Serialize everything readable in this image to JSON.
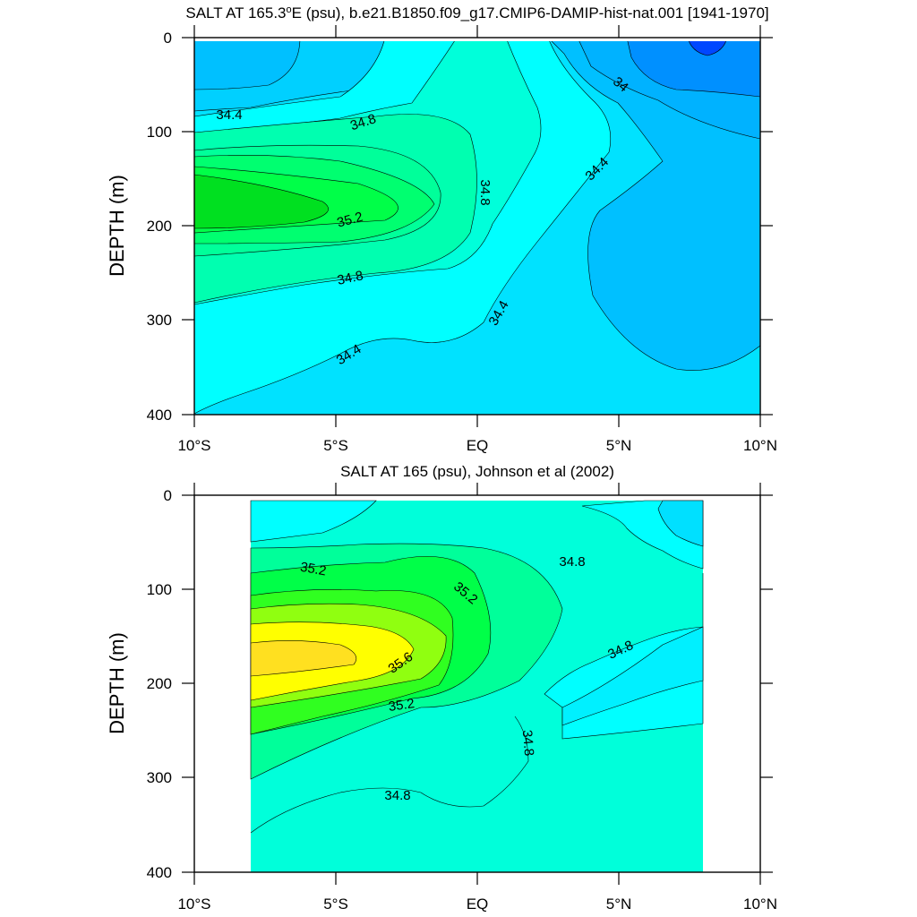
{
  "chart_data": [
    {
      "type": "contour",
      "title": "SALT AT 165.3°E (psu), b.e21.B1850.f09_g17.CMIP6-DAMIP-hist-nat.001 [1941-1970]",
      "title_parts": {
        "pre": "SALT AT 165.3",
        "sup": "o",
        "post": "E (psu), b.e21.B1850.f09_g17.CMIP6-DAMIP-hist-nat.001 [1941-1970]"
      },
      "ylabel": "DEPTH (m)",
      "xlim": [
        -10,
        10
      ],
      "ylim": [
        400,
        0
      ],
      "y_ticks": [
        "0",
        "100",
        "200",
        "300",
        "400"
      ],
      "x_ticks": [
        "10°S",
        "5°S",
        "EQ",
        "5°N",
        "10°N"
      ],
      "contour_levels": [
        33.6,
        33.8,
        34.0,
        34.2,
        34.4,
        34.6,
        34.8,
        35.0,
        35.2
      ],
      "contour_labels": [
        {
          "text": "34.4",
          "lat": -9.0,
          "depth": 80
        },
        {
          "text": "34.8",
          "lat": -4.0,
          "depth": 88
        },
        {
          "text": "34.8",
          "lat": 0.1,
          "depth": 165
        },
        {
          "text": "35.2",
          "lat": -4.5,
          "depth": 190
        },
        {
          "text": "34.8",
          "lat": -4.5,
          "depth": 255
        },
        {
          "text": "34",
          "lat": 5.0,
          "depth": 48
        },
        {
          "text": "34.4",
          "lat": 4.1,
          "depth": 138
        },
        {
          "text": "34.4",
          "lat": 0.9,
          "depth": 297
        },
        {
          "text": "34.4",
          "lat": -4.5,
          "depth": 345
        }
      ],
      "fill_colors": [
        "#0047ff",
        "#0090ff",
        "#00c0ff",
        "#00e2ff",
        "#2ef0ff",
        "#00ffff",
        "#00ffda",
        "#00ff9a",
        "#00ff48",
        "#00e020"
      ]
    },
    {
      "type": "contour",
      "title": "SALT AT 165 (psu), Johnson et al (2002)",
      "ylabel": "DEPTH (m)",
      "xlim": [
        -10,
        10
      ],
      "ylim": [
        400,
        0
      ],
      "data_xrange": [
        -8,
        8
      ],
      "y_ticks": [
        "0",
        "100",
        "200",
        "300",
        "400"
      ],
      "x_ticks": [
        "10°S",
        "5°S",
        "EQ",
        "5°N",
        "10°N"
      ],
      "contour_levels": [
        34.2,
        34.4,
        34.6,
        34.8,
        35.0,
        35.2,
        35.4,
        35.6,
        35.8
      ],
      "contour_labels": [
        {
          "text": "35.2",
          "lat": -5.9,
          "depth": 72
        },
        {
          "text": "35.2",
          "lat": -0.6,
          "depth": 100
        },
        {
          "text": "34.8",
          "lat": 3.4,
          "depth": 65
        },
        {
          "text": "34.8",
          "lat": 5.1,
          "depth": 155
        },
        {
          "text": "35.6",
          "lat": -2.7,
          "depth": 167
        },
        {
          "text": "35.2",
          "lat": -2.6,
          "depth": 216
        },
        {
          "text": "34.8",
          "lat": 1.6,
          "depth": 265
        },
        {
          "text": "34.8",
          "lat": -2.8,
          "depth": 308
        }
      ],
      "fill_colors": [
        "#00e0ff",
        "#00ffff",
        "#00ffda",
        "#00ff9a",
        "#00ff48",
        "#90ff10",
        "#ffff00",
        "#ffe020"
      ]
    }
  ]
}
